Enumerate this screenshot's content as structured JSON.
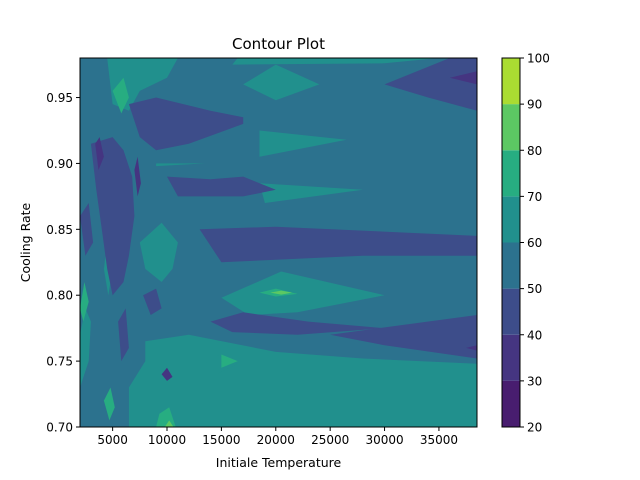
{
  "chart_data": {
    "type": "contour",
    "title": "Contour Plot",
    "xlabel": "Initiale Temperature",
    "ylabel": "Cooling Rate",
    "xlim": [
      2000,
      38500
    ],
    "ylim": [
      0.7,
      0.98
    ],
    "xticks": [
      5000,
      10000,
      15000,
      20000,
      25000,
      30000,
      35000
    ],
    "yticks": [
      0.7,
      0.75,
      0.8,
      0.85,
      0.9,
      0.95
    ],
    "ytick_labels": [
      "0.70",
      "0.75",
      "0.80",
      "0.85",
      "0.90",
      "0.95"
    ],
    "colorbar": {
      "levels": [
        20,
        30,
        40,
        50,
        60,
        70,
        80,
        90,
        100
      ],
      "colors": [
        "#481d6f",
        "#453581",
        "#3d4d8a",
        "#2c728e",
        "#21908d",
        "#27ad81",
        "#5cc863",
        "#aadc32",
        "#dde318"
      ],
      "tick_labels": [
        "20",
        "30",
        "40",
        "50",
        "60",
        "70",
        "80",
        "90",
        "100"
      ]
    },
    "background_band": "50-60",
    "regions": [
      {
        "band": "60-70",
        "points": [
          [
            4500,
            0.98
          ],
          [
            11000,
            0.98
          ],
          [
            10000,
            0.965
          ],
          [
            7500,
            0.955
          ],
          [
            6500,
            0.94
          ],
          [
            5000,
            0.945
          ]
        ]
      },
      {
        "band": "60-70",
        "points": [
          [
            16500,
            0.98
          ],
          [
            35000,
            0.98
          ],
          [
            30000,
            0.976
          ],
          [
            16000,
            0.975
          ]
        ]
      },
      {
        "band": "60-70",
        "points": [
          [
            17000,
            0.96
          ],
          [
            20000,
            0.975
          ],
          [
            24000,
            0.96
          ],
          [
            20000,
            0.948
          ]
        ]
      },
      {
        "band": "60-70",
        "points": [
          [
            18500,
            0.925
          ],
          [
            26500,
            0.918
          ],
          [
            18500,
            0.905
          ]
        ]
      },
      {
        "band": "60-70",
        "points": [
          [
            18500,
            0.885
          ],
          [
            28000,
            0.88
          ],
          [
            19000,
            0.87
          ]
        ]
      },
      {
        "band": "60-70",
        "points": [
          [
            7500,
            0.84
          ],
          [
            9500,
            0.855
          ],
          [
            11000,
            0.84
          ],
          [
            10500,
            0.82
          ],
          [
            9500,
            0.81
          ],
          [
            8000,
            0.82
          ]
        ]
      },
      {
        "band": "60-70",
        "points": [
          [
            15000,
            0.798
          ],
          [
            20500,
            0.818
          ],
          [
            30000,
            0.8
          ],
          [
            22000,
            0.787
          ],
          [
            17500,
            0.785
          ]
        ]
      },
      {
        "band": "60-70",
        "points": [
          [
            8000,
            0.765
          ],
          [
            12000,
            0.77
          ],
          [
            20000,
            0.757
          ],
          [
            28000,
            0.752
          ],
          [
            38500,
            0.748
          ],
          [
            38500,
            0.7
          ],
          [
            6500,
            0.7
          ],
          [
            6500,
            0.73
          ],
          [
            8000,
            0.75
          ]
        ]
      },
      {
        "band": "60-70",
        "points": [
          [
            2000,
            0.77
          ],
          [
            2500,
            0.79
          ],
          [
            3000,
            0.78
          ],
          [
            2800,
            0.75
          ],
          [
            2000,
            0.73
          ]
        ]
      },
      {
        "band": "60-70",
        "points": [
          [
            4200,
            0.82
          ],
          [
            4800,
            0.86
          ],
          [
            5200,
            0.83
          ],
          [
            4600,
            0.8
          ]
        ]
      },
      {
        "band": "60-70",
        "points": [
          [
            9000,
            0.9
          ],
          [
            13500,
            0.9
          ],
          [
            9000,
            0.898
          ]
        ]
      },
      {
        "band": "60-70",
        "points": [
          [
            14500,
            0.755
          ],
          [
            16500,
            0.748
          ],
          [
            14500,
            0.74
          ],
          [
            13500,
            0.748
          ]
        ]
      },
      {
        "band": "70-80",
        "points": [
          [
            5000,
            0.955
          ],
          [
            6000,
            0.965
          ],
          [
            6500,
            0.95
          ],
          [
            5800,
            0.938
          ]
        ]
      },
      {
        "band": "70-80",
        "points": [
          [
            9000,
            0.7
          ],
          [
            9300,
            0.71
          ],
          [
            10200,
            0.715
          ],
          [
            10800,
            0.7
          ]
        ]
      },
      {
        "band": "70-80",
        "points": [
          [
            18500,
            0.802
          ],
          [
            20000,
            0.805
          ],
          [
            22000,
            0.801
          ],
          [
            20000,
            0.799
          ]
        ]
      },
      {
        "band": "70-80",
        "points": [
          [
            15000,
            0.755
          ],
          [
            16500,
            0.75
          ],
          [
            15000,
            0.745
          ]
        ]
      },
      {
        "band": "70-80",
        "points": [
          [
            4200,
            0.72
          ],
          [
            4800,
            0.73
          ],
          [
            5200,
            0.715
          ],
          [
            4700,
            0.705
          ]
        ]
      },
      {
        "band": "70-80",
        "points": [
          [
            2000,
            0.79
          ],
          [
            2400,
            0.81
          ],
          [
            2800,
            0.795
          ],
          [
            2300,
            0.78
          ]
        ]
      },
      {
        "band": "80-90",
        "points": [
          [
            9800,
            0.7
          ],
          [
            10200,
            0.705
          ],
          [
            10600,
            0.7
          ]
        ]
      },
      {
        "band": "80-90",
        "points": [
          [
            19500,
            0.802
          ],
          [
            20500,
            0.8035
          ],
          [
            21500,
            0.802
          ],
          [
            20500,
            0.8005
          ]
        ]
      },
      {
        "band": "40-50",
        "points": [
          [
            3000,
            0.915
          ],
          [
            5000,
            0.92
          ],
          [
            6000,
            0.91
          ],
          [
            6800,
            0.89
          ],
          [
            7000,
            0.86
          ],
          [
            6500,
            0.83
          ],
          [
            6000,
            0.81
          ],
          [
            5000,
            0.8
          ],
          [
            4500,
            0.82
          ],
          [
            4000,
            0.85
          ],
          [
            3500,
            0.88
          ]
        ]
      },
      {
        "band": "40-50",
        "points": [
          [
            6500,
            0.945
          ],
          [
            9000,
            0.95
          ],
          [
            14000,
            0.94
          ],
          [
            17000,
            0.935
          ],
          [
            17000,
            0.93
          ],
          [
            12000,
            0.915
          ],
          [
            9000,
            0.91
          ],
          [
            7500,
            0.92
          ]
        ]
      },
      {
        "band": "40-50",
        "points": [
          [
            10000,
            0.89
          ],
          [
            14000,
            0.888
          ],
          [
            17000,
            0.89
          ],
          [
            20000,
            0.88
          ],
          [
            17000,
            0.875
          ],
          [
            11000,
            0.875
          ]
        ]
      },
      {
        "band": "40-50",
        "points": [
          [
            13000,
            0.85
          ],
          [
            20000,
            0.852
          ],
          [
            38500,
            0.845
          ],
          [
            38500,
            0.83
          ],
          [
            28000,
            0.83
          ],
          [
            15000,
            0.825
          ]
        ]
      },
      {
        "band": "40-50",
        "points": [
          [
            14000,
            0.78
          ],
          [
            17000,
            0.787
          ],
          [
            23000,
            0.78
          ],
          [
            30000,
            0.775
          ],
          [
            22000,
            0.77
          ],
          [
            16000,
            0.772
          ]
        ]
      },
      {
        "band": "40-50",
        "points": [
          [
            25000,
            0.77
          ],
          [
            38500,
            0.785
          ],
          [
            38500,
            0.752
          ],
          [
            30000,
            0.762
          ]
        ]
      },
      {
        "band": "40-50",
        "points": [
          [
            30000,
            0.96
          ],
          [
            36000,
            0.98
          ],
          [
            38500,
            0.98
          ],
          [
            38500,
            0.94
          ],
          [
            34000,
            0.95
          ]
        ]
      },
      {
        "band": "40-50",
        "points": [
          [
            2000,
            0.86
          ],
          [
            2800,
            0.87
          ],
          [
            3200,
            0.84
          ],
          [
            2500,
            0.83
          ]
        ]
      },
      {
        "band": "40-50",
        "points": [
          [
            5500,
            0.78
          ],
          [
            6200,
            0.79
          ],
          [
            6500,
            0.76
          ],
          [
            5800,
            0.75
          ]
        ]
      },
      {
        "band": "40-50",
        "points": [
          [
            7800,
            0.8
          ],
          [
            9000,
            0.805
          ],
          [
            9500,
            0.79
          ],
          [
            8500,
            0.785
          ]
        ]
      },
      {
        "band": "30-40",
        "points": [
          [
            3400,
            0.915
          ],
          [
            3800,
            0.92
          ],
          [
            4200,
            0.905
          ],
          [
            3700,
            0.895
          ]
        ]
      },
      {
        "band": "30-40",
        "points": [
          [
            7000,
            0.895
          ],
          [
            7300,
            0.905
          ],
          [
            7600,
            0.885
          ],
          [
            7300,
            0.875
          ]
        ]
      },
      {
        "band": "30-40",
        "points": [
          [
            36000,
            0.965
          ],
          [
            38500,
            0.97
          ],
          [
            38500,
            0.96
          ]
        ]
      },
      {
        "band": "30-40",
        "points": [
          [
            37500,
            0.76
          ],
          [
            38500,
            0.762
          ],
          [
            38500,
            0.758
          ]
        ]
      },
      {
        "band": "30-40",
        "points": [
          [
            9500,
            0.74
          ],
          [
            10000,
            0.745
          ],
          [
            10500,
            0.738
          ],
          [
            10000,
            0.735
          ]
        ]
      }
    ]
  }
}
